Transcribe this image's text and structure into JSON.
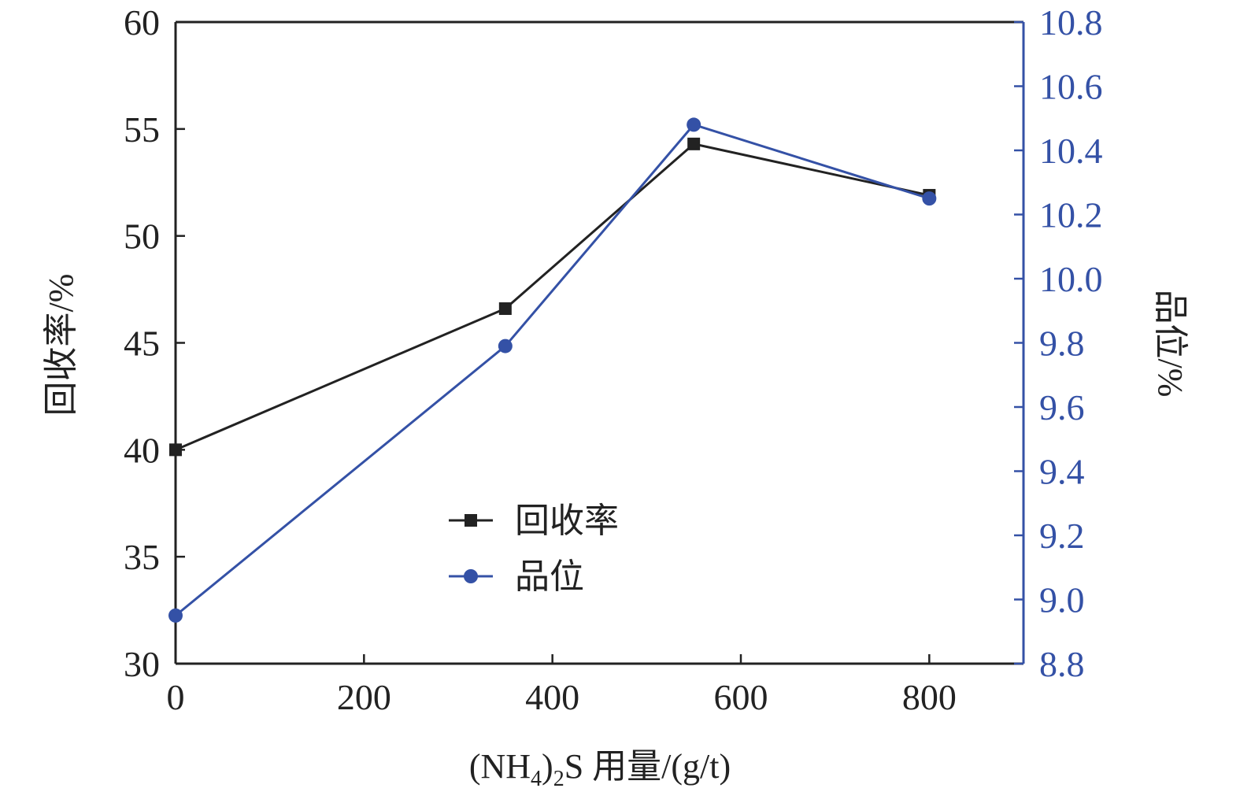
{
  "chart_data": {
    "type": "line",
    "xlabel_parts": {
      "prefix": "(NH",
      "sub1": "4",
      "mid": ")",
      "sub2": "2",
      "suffix": "S 用量/(g/t)"
    },
    "ylabel_left": "回收率/%",
    "ylabel_right": "品位/%",
    "xlim": [
      0,
      900
    ],
    "ylim_left": [
      30,
      60
    ],
    "ylim_right": [
      8.8,
      10.8
    ],
    "x_ticks": [
      0,
      200,
      400,
      600,
      800
    ],
    "x_tick_labels": [
      "0",
      "200",
      "400",
      "600",
      "800"
    ],
    "y_left_ticks": [
      30,
      35,
      40,
      45,
      50,
      55,
      60
    ],
    "y_left_tick_labels": [
      "30",
      "35",
      "40",
      "45",
      "50",
      "55",
      "60"
    ],
    "y_right_ticks": [
      8.8,
      9.0,
      9.2,
      9.4,
      9.6,
      9.8,
      10.0,
      10.2,
      10.4,
      10.6,
      10.8
    ],
    "y_right_tick_labels": [
      "8.8",
      "9.0",
      "9.2",
      "9.4",
      "9.6",
      "9.8",
      "10.0",
      "10.2",
      "10.4",
      "10.6",
      "10.8"
    ],
    "legend_placement": "center",
    "series": [
      {
        "name": "回收率",
        "axis": "left",
        "marker": "square",
        "color": "#222222",
        "x": [
          0,
          350,
          550,
          800
        ],
        "y": [
          40.0,
          46.6,
          54.3,
          51.9
        ]
      },
      {
        "name": "品位",
        "axis": "right",
        "marker": "circle",
        "color": "#3451a6",
        "x": [
          0,
          350,
          550,
          800
        ],
        "y": [
          8.95,
          9.79,
          10.48,
          10.25
        ]
      }
    ]
  },
  "colors": {
    "axis": "#222222",
    "right_axis": "#3451a6"
  }
}
